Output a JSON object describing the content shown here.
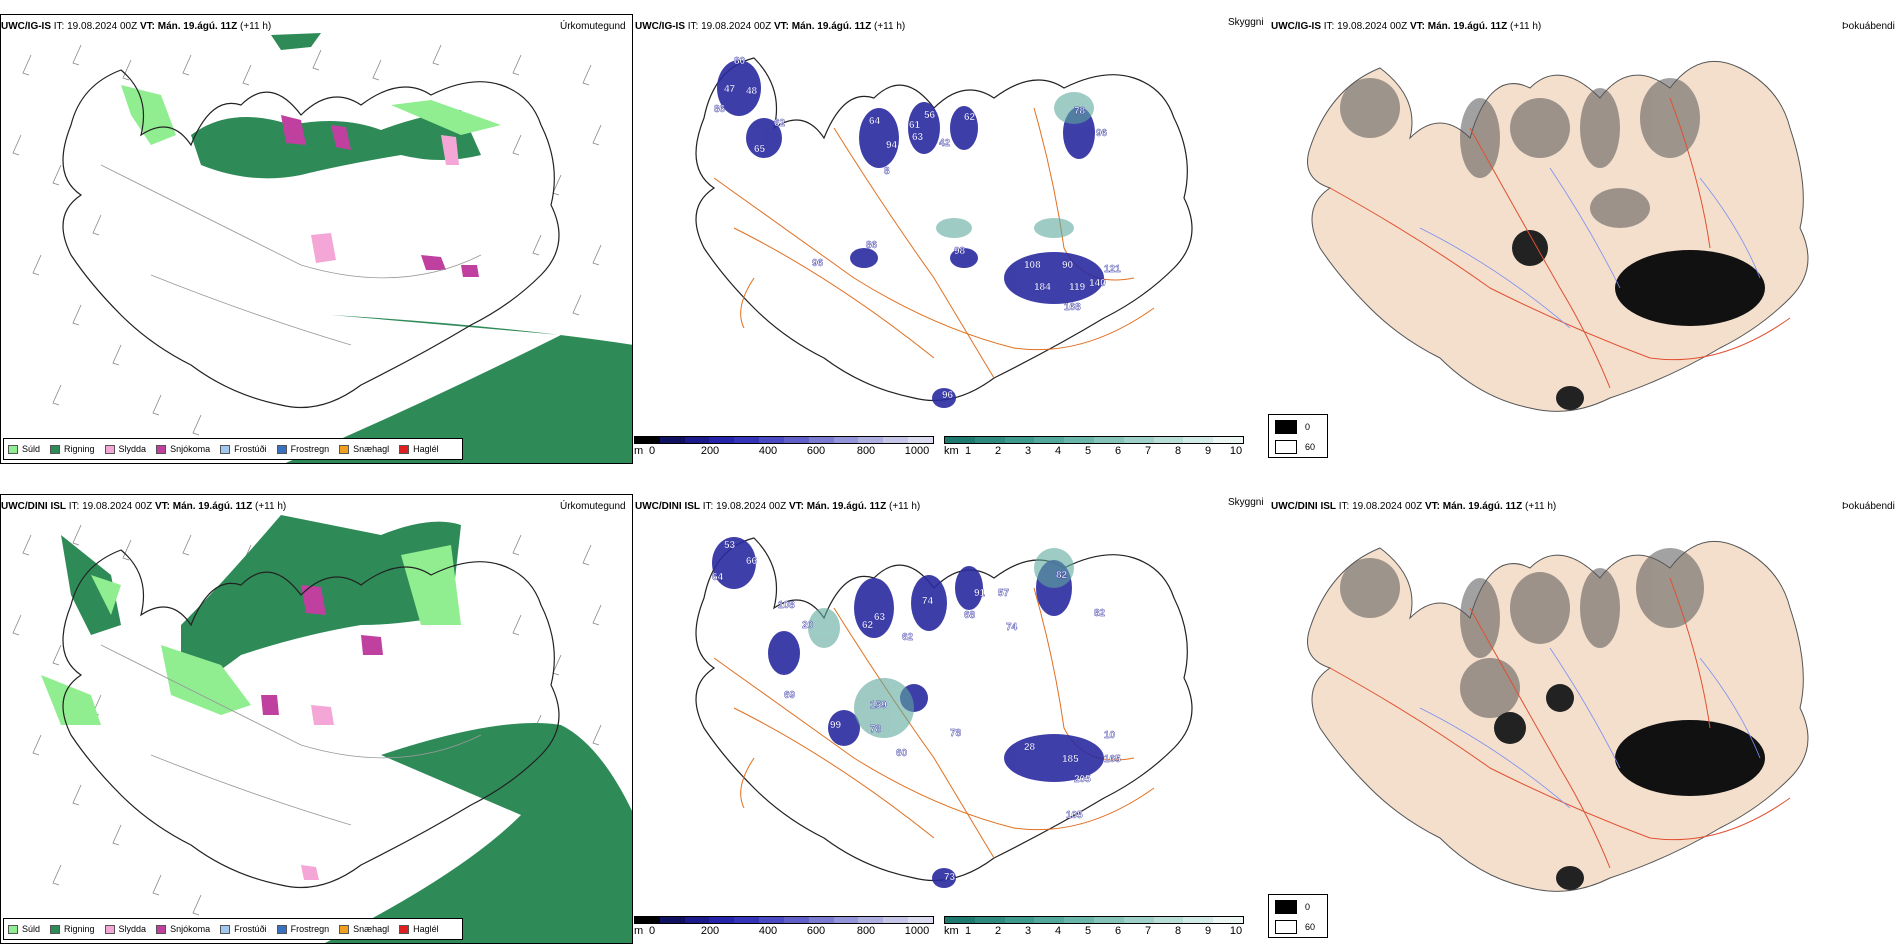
{
  "rows": [
    {
      "model": "UWC/IG-IS",
      "it_label": "IT:",
      "it_value": "19.08.2024 00Z",
      "vt_label": "VT:",
      "vt_value": "Mán. 19.ágú. 11Z",
      "lead": "(+11 h)",
      "labels_visibility": [
        "80",
        "47",
        "48",
        "86",
        "62",
        "65",
        "64",
        "94",
        "56",
        "61",
        "63",
        "42",
        "62",
        "78",
        "96",
        "8",
        "86",
        "96",
        "98",
        "108",
        "90",
        "121",
        "184",
        "119",
        "140",
        "168",
        "96"
      ]
    },
    {
      "model": "UWC/DINI ISL",
      "it_label": "IT:",
      "it_value": "19.08.2024 00Z",
      "vt_label": "VT:",
      "vt_value": "Mán. 19.ágú. 11Z",
      "lead": "(+11 h)",
      "labels_visibility": [
        "53",
        "64",
        "66",
        "108",
        "20",
        "63",
        "62",
        "62",
        "99",
        "69",
        "74",
        "68",
        "91",
        "57",
        "74",
        "82",
        "82",
        "159",
        "78",
        "78",
        "60",
        "28",
        "185",
        "205",
        "165",
        "10",
        "105",
        "73"
      ]
    }
  ],
  "panel_titles": {
    "precip": "Úrkomutegund",
    "visibility": "Skyggni",
    "fog": "Þokuábendi"
  },
  "precip_legend": [
    {
      "label": "Súld",
      "color": "#90ee90"
    },
    {
      "label": "Rigning",
      "color": "#2e8b57"
    },
    {
      "label": "Slydda",
      "color": "#f4a6d7"
    },
    {
      "label": "Snjókoma",
      "color": "#c040a0"
    },
    {
      "label": "Frostúði",
      "color": "#a0c8f0"
    },
    {
      "label": "Frostregn",
      "color": "#3a70c0"
    },
    {
      "label": "Snæhagl",
      "color": "#f0a020"
    },
    {
      "label": "Haglél",
      "color": "#e02020"
    }
  ],
  "height_bar": {
    "unit": "m",
    "ticks": [
      "0",
      "200",
      "400",
      "600",
      "800",
      "1000"
    ],
    "colors": [
      "#000000",
      "#101060",
      "#1a1a8a",
      "#2424a8",
      "#3434b8",
      "#4a4ac2",
      "#6060c8",
      "#7a7ad0",
      "#9494d8",
      "#aeaee0",
      "#c6c6e8",
      "#dcdcf0"
    ]
  },
  "vis_bar": {
    "unit": "km",
    "ticks": [
      "1",
      "2",
      "3",
      "4",
      "5",
      "6",
      "7",
      "8",
      "9",
      "10"
    ],
    "colors": [
      "#1e7a6e",
      "#2e8a7e",
      "#3f9a8e",
      "#54a89c",
      "#6ab6aa",
      "#84c4b9",
      "#9ed2c8",
      "#b8dfd7",
      "#d2ebe6",
      "#ecf7f5"
    ]
  },
  "fog_legend": {
    "high": "0",
    "low": "60"
  },
  "colors": {
    "rain": "#2e8b57",
    "drizzle": "#90ee90",
    "sleet": "#f4a6d7",
    "snow": "#c040a0",
    "land_fog": "#f4dfcd",
    "road": "#e07020",
    "river": "#7a8ff0",
    "glacier_blue": "#2a2aa0"
  }
}
